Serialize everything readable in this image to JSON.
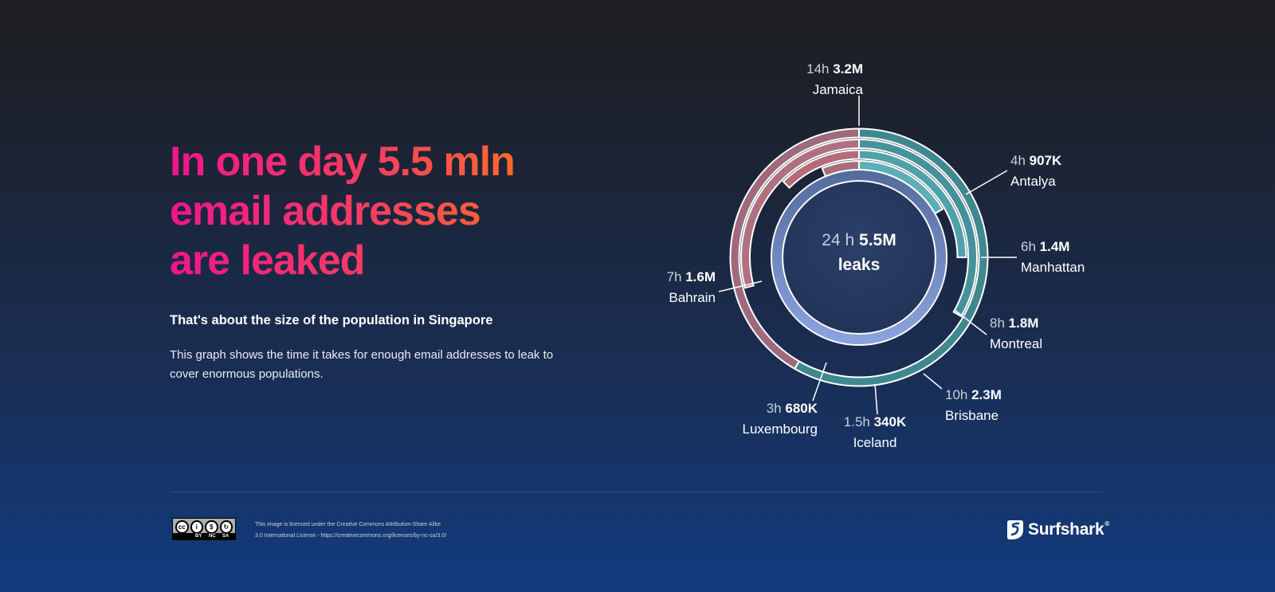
{
  "headline": {
    "line1": "In one day 5.5 mln",
    "line2": "email addresses",
    "line3": "are leaked"
  },
  "subhead": "That's about the size of the population in Singapore",
  "description": "This graph shows the time it takes for enough email addresses to leak to cover enormous populations.",
  "chart_data": {
    "type": "radial-bar",
    "unit_full_circle_hours": 24,
    "center": {
      "hours": "24 h",
      "value": "5.5M",
      "label": "leaks"
    },
    "series": [
      {
        "time": "1.5h",
        "hours": 1.5,
        "value": "340K",
        "place": "Iceland",
        "group": "pink"
      },
      {
        "time": "3h",
        "hours": 3,
        "value": "680K",
        "place": "Luxembourg",
        "group": "pink"
      },
      {
        "time": "4h",
        "hours": 4,
        "value": "907K",
        "place": "Antalya",
        "group": "teal"
      },
      {
        "time": "6h",
        "hours": 6,
        "value": "1.4M",
        "place": "Manhattan",
        "group": "teal"
      },
      {
        "time": "7h",
        "hours": 7,
        "value": "1.6M",
        "place": "Bahrain",
        "group": "pink"
      },
      {
        "time": "8h",
        "hours": 8,
        "value": "1.8M",
        "place": "Montreal",
        "group": "teal"
      },
      {
        "time": "10h",
        "hours": 10,
        "value": "2.3M",
        "place": "Brisbane",
        "group": "pink"
      },
      {
        "time": "14h",
        "hours": 14,
        "value": "3.2M",
        "place": "Jamaica",
        "group": "teal"
      }
    ],
    "colors": {
      "teal": "#4a9ea8",
      "pink": "#b36877",
      "inner": "#8aa3df"
    }
  },
  "footer": {
    "license_line1": "This image is licensed under the Creative Commons Attribution-Share Alike",
    "license_line2": "3.0 International License - https://creativecommons.org/licenses/by-nc-sa/3.0/",
    "cc_by": "BY",
    "cc_nc": "NC",
    "cc_sa": "SA",
    "brand": "Surfshark",
    "brand_mark": "®"
  }
}
